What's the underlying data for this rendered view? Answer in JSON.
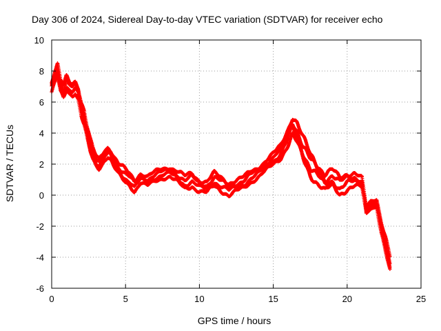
{
  "chart_data": {
    "type": "scatter",
    "title": "Day 306 of 2024, Sidereal Day-to-day VTEC variation (SDTVAR) for receiver echo",
    "xlabel": "GPS time / hours",
    "ylabel": "SDTVAR / TECUs",
    "xlim": [
      0,
      25
    ],
    "ylim": [
      -6,
      10
    ],
    "xticks": [
      0,
      5,
      10,
      15,
      20,
      25
    ],
    "yticks": [
      -6,
      -4,
      -2,
      0,
      2,
      4,
      6,
      8,
      10
    ],
    "grid": true,
    "marker": "+",
    "series": [
      {
        "name": "SDTVAR",
        "color": "#ff0000",
        "x": [
          0,
          0.2,
          0.4,
          0.6,
          0.8,
          1.0,
          1.2,
          1.4,
          1.6,
          1.8,
          2.0,
          2.2,
          2.4,
          2.6,
          2.8,
          3.0,
          3.2,
          3.4,
          3.6,
          3.8,
          4.0,
          4.2,
          4.5,
          4.8,
          5.0,
          5.3,
          5.6,
          6.0,
          6.5,
          7.0,
          7.5,
          8.0,
          8.5,
          9.0,
          9.5,
          10.0,
          10.5,
          11.0,
          11.5,
          12.0,
          12.5,
          13.0,
          13.5,
          14.0,
          14.5,
          15.0,
          15.5,
          16.0,
          16.3,
          16.6,
          17.0,
          17.5,
          18.0,
          18.5,
          19.0,
          19.5,
          20.0,
          20.5,
          21.0,
          21.3,
          21.6,
          22.0,
          22.3,
          22.6,
          22.9
        ],
        "y": [
          7.0,
          7.6,
          8.0,
          7.0,
          6.6,
          7.2,
          6.9,
          6.8,
          7.0,
          6.6,
          5.6,
          5.0,
          4.0,
          3.2,
          2.6,
          2.2,
          2.0,
          2.3,
          2.6,
          2.8,
          2.6,
          2.2,
          1.7,
          1.4,
          1.2,
          1.0,
          0.6,
          1.1,
          0.9,
          1.2,
          1.4,
          1.5,
          1.2,
          0.8,
          1.0,
          0.6,
          0.5,
          1.0,
          0.7,
          0.4,
          0.6,
          0.8,
          1.2,
          1.5,
          1.9,
          2.3,
          2.8,
          3.8,
          4.5,
          4.0,
          3.0,
          2.0,
          1.4,
          0.8,
          1.1,
          0.6,
          0.9,
          1.0,
          0.8,
          -1.0,
          -0.6,
          -0.5,
          -2.0,
          -3.2,
          -4.5
        ],
        "band_width": [
          0.7,
          0.8,
          0.9,
          0.8,
          0.8,
          0.8,
          0.7,
          0.7,
          0.7,
          0.8,
          0.9,
          1.0,
          0.9,
          0.8,
          0.7,
          0.6,
          0.6,
          0.6,
          0.6,
          0.6,
          0.6,
          0.7,
          0.7,
          0.8,
          0.8,
          0.7,
          0.7,
          0.6,
          0.6,
          0.6,
          0.6,
          0.6,
          0.7,
          0.8,
          0.8,
          0.7,
          0.7,
          0.8,
          0.8,
          0.8,
          0.7,
          0.7,
          0.7,
          0.6,
          0.6,
          0.7,
          0.8,
          1.0,
          1.2,
          1.3,
          1.3,
          1.3,
          1.2,
          1.1,
          1.0,
          1.0,
          1.0,
          0.9,
          0.6,
          0.4,
          0.4,
          0.5,
          0.8,
          1.0,
          1.0
        ]
      }
    ]
  }
}
